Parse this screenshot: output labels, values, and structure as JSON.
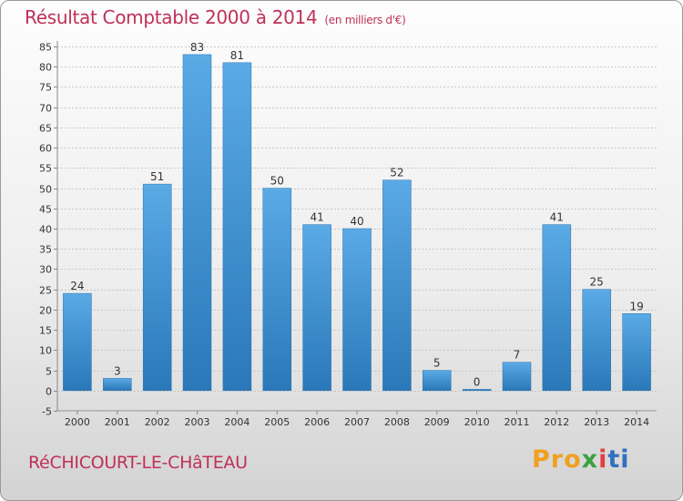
{
  "chart_data": {
    "type": "bar",
    "title": "Résultat Comptable 2000 à 2014",
    "subtitle": "(en milliers d'€)",
    "categories": [
      "2000",
      "2001",
      "2002",
      "2003",
      "2004",
      "2005",
      "2006",
      "2007",
      "2008",
      "2009",
      "2010",
      "2011",
      "2012",
      "2013",
      "2014"
    ],
    "values": [
      24,
      3,
      51,
      83,
      81,
      50,
      41,
      40,
      52,
      5,
      0,
      7,
      41,
      25,
      19
    ],
    "ylim": [
      -5,
      85
    ],
    "yticks": [
      -5,
      0,
      5,
      10,
      15,
      20,
      25,
      30,
      35,
      40,
      45,
      50,
      55,
      60,
      65,
      70,
      75,
      80,
      85
    ],
    "xlabel": "",
    "ylabel": "",
    "grid": true,
    "colors": {
      "bar_top": "#5aaae6",
      "bar_bottom": "#2a78b8",
      "title": "#c0305a"
    }
  },
  "footer": {
    "commune": "RéCHICOURT-LE-CHâTEAU",
    "logo_parts": [
      "Pro",
      "x",
      "i",
      "ti"
    ]
  }
}
